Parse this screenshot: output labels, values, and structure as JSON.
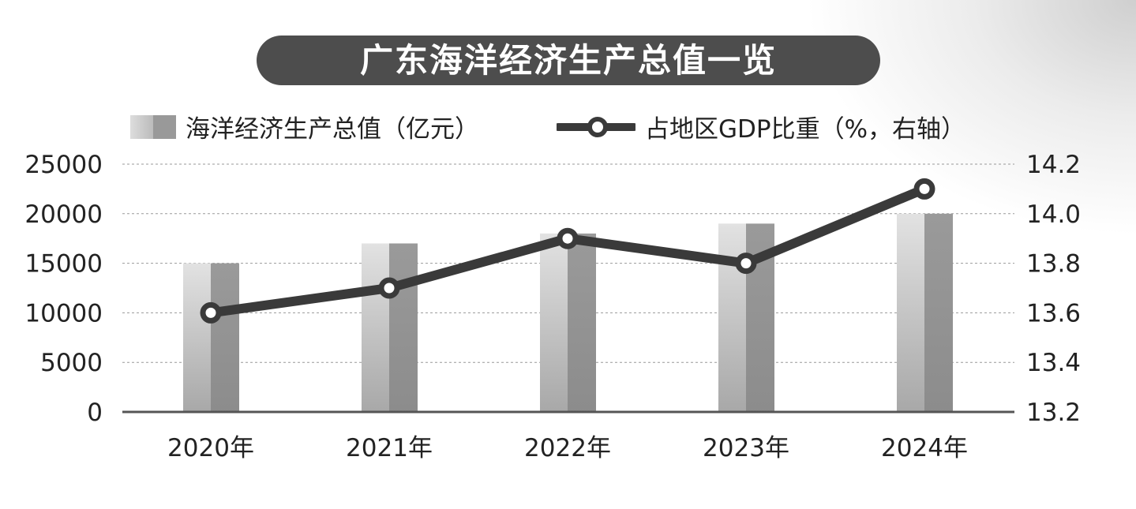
{
  "chart_data": {
    "type": "bar+line",
    "title": "广东海洋经济生产总值一览",
    "categories": [
      "2020年",
      "2021年",
      "2022年",
      "2023年",
      "2024年"
    ],
    "series": [
      {
        "name": "海洋经济生产总值（亿元）",
        "type": "bar",
        "axis": "left",
        "values": [
          15000,
          17000,
          18000,
          19000,
          20000
        ]
      },
      {
        "name": "占地区GDP比重（%，右轴）",
        "type": "line",
        "axis": "right",
        "values": [
          13.6,
          13.7,
          13.9,
          13.8,
          14.1
        ]
      }
    ],
    "left_axis": {
      "ylim": [
        0,
        25000
      ],
      "ticks": [
        "0",
        "5000",
        "10000",
        "15000",
        "20000",
        "25000"
      ]
    },
    "right_axis": {
      "ylim": [
        13.2,
        14.2
      ],
      "ticks": [
        "13.2",
        "13.4",
        "13.6",
        "13.8",
        "14.0",
        "14.2"
      ]
    },
    "grid": true,
    "legend_position": "top"
  },
  "colors": {
    "line": "#3a3a3a",
    "bar_light": "#d9d9d9",
    "bar_dark": "#9a9a9a",
    "title_bg": "#4d4d4d"
  }
}
